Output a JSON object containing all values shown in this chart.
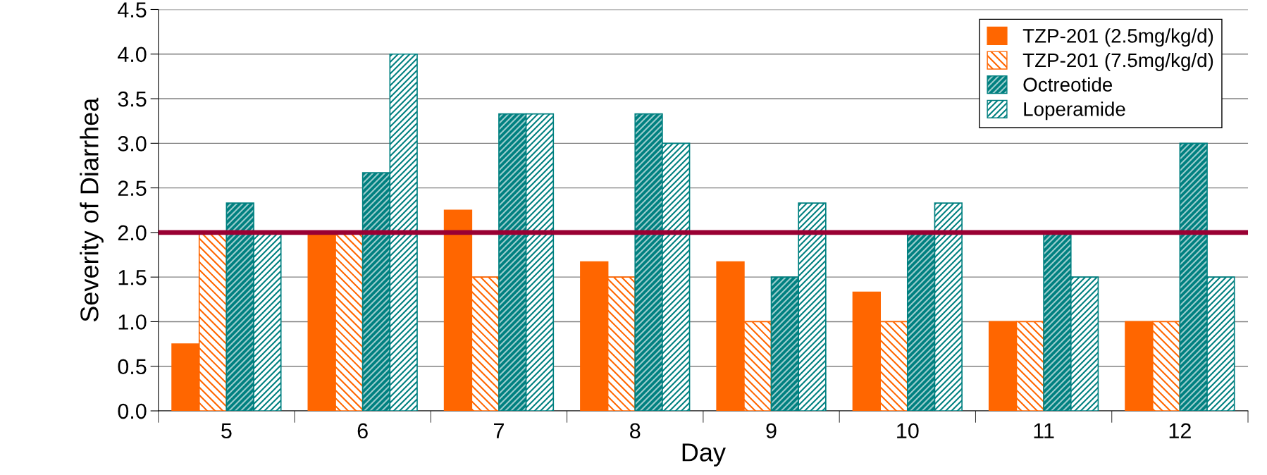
{
  "chart_data": {
    "type": "bar",
    "xlabel": "Day",
    "ylabel": "Severity of Diarrhea",
    "categories": [
      "5",
      "6",
      "7",
      "8",
      "9",
      "10",
      "11",
      "12"
    ],
    "series": [
      {
        "name": "TZP-201 (2.5mg/kg/d)",
        "color": "#ff6600",
        "values": [
          0.75,
          2.0,
          2.25,
          1.67,
          1.67,
          1.33,
          1.0,
          1.0
        ]
      },
      {
        "name": "TZP-201 (7.5mg/kg/d)",
        "color": "#ff6600",
        "values": [
          2.0,
          2.0,
          1.5,
          1.5,
          1.0,
          1.0,
          1.0,
          1.0
        ]
      },
      {
        "name": "Octreotide",
        "color": "#008080",
        "values": [
          2.33,
          2.67,
          3.33,
          3.33,
          1.5,
          2.0,
          2.0,
          3.0
        ]
      },
      {
        "name": "Loperamide",
        "color": "#008080",
        "values": [
          2.0,
          4.0,
          3.33,
          3.0,
          2.33,
          2.33,
          1.5,
          1.5
        ]
      }
    ],
    "ylim": [
      0,
      4.5
    ],
    "yticks": [
      {
        "value": 0,
        "label": "0.0"
      },
      {
        "value": 0.5,
        "label": "0.5"
      },
      {
        "value": 1,
        "label": "1.0"
      },
      {
        "value": 1.5,
        "label": "1.5"
      },
      {
        "value": 2,
        "label": "2.0"
      },
      {
        "value": 2.5,
        "label": "2.5"
      },
      {
        "value": 3,
        "label": "3.0"
      },
      {
        "value": 3.5,
        "label": "3.5"
      },
      {
        "value": 4,
        "label": "4.0"
      },
      {
        "value": 4.5,
        "label": "4.5"
      }
    ],
    "ref_lines": [
      {
        "axis": "y",
        "value": 2.0,
        "color": "#990033"
      }
    ],
    "grid": "y",
    "legend": "top right"
  }
}
